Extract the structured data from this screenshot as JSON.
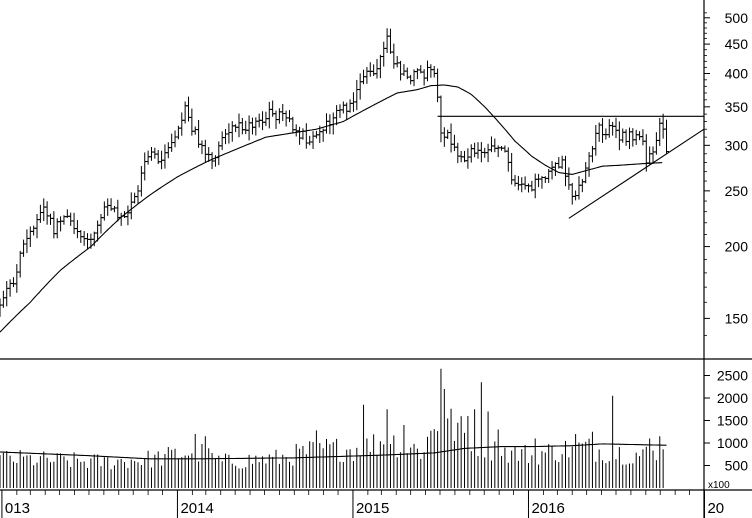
{
  "chart_data": [
    {
      "type": "ohlc",
      "scale": "log",
      "ylim": [
        128,
        520
      ],
      "y_ticks": [
        150,
        200,
        250,
        300,
        350,
        400,
        450,
        500
      ],
      "x_ticks": [
        {
          "label": "013",
          "date": "2013-01-01"
        },
        {
          "label": "2014",
          "date": "2014-01-01"
        },
        {
          "label": "2015",
          "date": "2015-01-01"
        },
        {
          "label": "2016",
          "date": "2016-01-01"
        },
        {
          "label": "20",
          "date": "2017-01-01"
        }
      ],
      "x_range": [
        "2012-12-28",
        "2016-12-31"
      ],
      "colors": {
        "bars": "#000000",
        "lines": "#000000",
        "background": "#ffffff"
      },
      "price_key": [
        [
          "2012-12-28",
          157
        ],
        [
          "2013-01-25",
          175
        ],
        [
          "2013-02-22",
          208
        ],
        [
          "2013-03-29",
          235
        ],
        [
          "2013-04-19",
          215
        ],
        [
          "2013-05-17",
          230
        ],
        [
          "2013-06-14",
          206
        ],
        [
          "2013-07-12",
          210
        ],
        [
          "2013-08-09",
          235
        ],
        [
          "2013-09-06",
          222
        ],
        [
          "2013-10-04",
          240
        ],
        [
          "2013-11-01",
          292
        ],
        [
          "2013-11-29",
          282
        ],
        [
          "2013-12-27",
          318
        ],
        [
          "2014-01-17",
          348
        ],
        [
          "2014-02-14",
          300
        ],
        [
          "2014-03-14",
          285
        ],
        [
          "2014-04-11",
          315
        ],
        [
          "2014-05-09",
          330
        ],
        [
          "2014-06-06",
          318
        ],
        [
          "2014-07-04",
          342
        ],
        [
          "2014-08-01",
          338
        ],
        [
          "2014-08-29",
          325
        ],
        [
          "2014-10-03",
          302
        ],
        [
          "2014-10-31",
          320
        ],
        [
          "2014-11-28",
          342
        ],
        [
          "2014-12-26",
          355
        ],
        [
          "2015-01-23",
          392
        ],
        [
          "2015-02-20",
          415
        ],
        [
          "2015-03-13",
          458
        ],
        [
          "2015-04-03",
          410
        ],
        [
          "2015-05-01",
          395
        ],
        [
          "2015-05-29",
          400
        ],
        [
          "2015-06-19",
          410
        ],
        [
          "2015-07-03",
          322
        ],
        [
          "2015-07-31",
          300
        ],
        [
          "2015-08-21",
          280
        ],
        [
          "2015-09-11",
          296
        ],
        [
          "2015-10-09",
          290
        ],
        [
          "2015-11-06",
          300
        ],
        [
          "2015-11-27",
          265
        ],
        [
          "2015-12-25",
          250
        ],
        [
          "2016-01-22",
          258
        ],
        [
          "2016-02-12",
          272
        ],
        [
          "2016-03-11",
          285
        ],
        [
          "2016-04-01",
          240
        ],
        [
          "2016-04-22",
          258
        ],
        [
          "2016-05-06",
          290
        ],
        [
          "2016-05-27",
          320
        ],
        [
          "2016-06-24",
          318
        ],
        [
          "2016-07-22",
          310
        ],
        [
          "2016-08-19",
          312
        ],
        [
          "2016-09-02",
          285
        ],
        [
          "2016-09-23",
          300
        ],
        [
          "2016-09-30",
          325
        ],
        [
          "2016-10-14",
          300
        ]
      ],
      "moving_average": [
        [
          "2012-12-28",
          142
        ],
        [
          "2013-03-01",
          160
        ],
        [
          "2013-05-03",
          182
        ],
        [
          "2013-07-05",
          200
        ],
        [
          "2013-09-06",
          225
        ],
        [
          "2013-11-08",
          247
        ],
        [
          "2014-01-03",
          265
        ],
        [
          "2014-03-07",
          282
        ],
        [
          "2014-05-02",
          295
        ],
        [
          "2014-07-04",
          310
        ],
        [
          "2014-09-05",
          316
        ],
        [
          "2014-10-17",
          320
        ],
        [
          "2014-12-12",
          330
        ],
        [
          "2015-02-06",
          350
        ],
        [
          "2015-04-03",
          370
        ],
        [
          "2015-05-15",
          375
        ],
        [
          "2015-06-12",
          381
        ],
        [
          "2015-07-10",
          382
        ],
        [
          "2015-08-07",
          379
        ],
        [
          "2015-09-04",
          368
        ],
        [
          "2015-10-02",
          350
        ],
        [
          "2015-11-06",
          325
        ],
        [
          "2015-12-04",
          305
        ],
        [
          "2016-01-08",
          287
        ],
        [
          "2016-02-05",
          277
        ],
        [
          "2016-03-04",
          269
        ],
        [
          "2016-04-01",
          267
        ],
        [
          "2016-04-29",
          271
        ],
        [
          "2016-06-03",
          276
        ],
        [
          "2016-07-08",
          277
        ],
        [
          "2016-08-05",
          278
        ],
        [
          "2016-09-02",
          279
        ],
        [
          "2016-10-07",
          280
        ]
      ],
      "lines": [
        {
          "kind": "resistance",
          "points": [
            [
              "2015-06-26",
              337
            ],
            [
              "2016-12-31",
              337
            ]
          ]
        },
        {
          "kind": "support",
          "points": [
            [
              "2016-03-25",
              224
            ],
            [
              "2016-12-31",
              320
            ]
          ]
        }
      ]
    },
    {
      "type": "bar",
      "unit": "x100",
      "ylim": [
        0,
        2800
      ],
      "y_ticks": [
        500,
        1000,
        1500,
        2000,
        2500
      ],
      "x_range": [
        "2012-12-28",
        "2016-12-31"
      ],
      "volume_key": [
        [
          "2012-12-28",
          800
        ],
        [
          "2013-04-05",
          750
        ],
        [
          "2013-08-02",
          700
        ],
        [
          "2013-11-22",
          800
        ],
        [
          "2014-02-07",
          1000
        ],
        [
          "2014-04-04",
          700
        ],
        [
          "2014-08-01",
          800
        ],
        [
          "2014-10-24",
          1050
        ],
        [
          "2015-01-16",
          1050
        ],
        [
          "2015-03-13",
          1300
        ],
        [
          "2015-05-22",
          1000
        ],
        [
          "2015-07-03",
          1900
        ],
        [
          "2015-08-14",
          1500
        ],
        [
          "2015-10-23",
          1000
        ],
        [
          "2016-01-08",
          900
        ],
        [
          "2016-03-04",
          1000
        ],
        [
          "2016-04-15",
          1100
        ],
        [
          "2016-06-03",
          1000
        ],
        [
          "2016-08-19",
          900
        ],
        [
          "2016-10-07",
          900
        ]
      ],
      "peaks": [
        [
          "2014-02-07",
          1200
        ],
        [
          "2014-02-28",
          1150
        ],
        [
          "2014-10-17",
          1280
        ],
        [
          "2015-01-23",
          1850
        ],
        [
          "2015-03-13",
          1750
        ],
        [
          "2015-04-17",
          1400
        ],
        [
          "2015-07-03",
          2650
        ],
        [
          "2015-07-10",
          2200
        ],
        [
          "2015-08-07",
          1450
        ],
        [
          "2015-08-28",
          1600
        ],
        [
          "2015-09-11",
          1750
        ],
        [
          "2015-09-25",
          2350
        ],
        [
          "2015-10-09",
          1700
        ],
        [
          "2015-10-30",
          1300
        ],
        [
          "2016-01-15",
          1100
        ],
        [
          "2016-04-08",
          1200
        ],
        [
          "2016-05-13",
          1250
        ],
        [
          "2016-06-24",
          2050
        ],
        [
          "2016-09-09",
          1100
        ],
        [
          "2016-09-30",
          1150
        ]
      ],
      "moving_average": [
        [
          "2012-12-28",
          800
        ],
        [
          "2013-06-28",
          720
        ],
        [
          "2013-11-01",
          650
        ],
        [
          "2014-03-01",
          650
        ],
        [
          "2014-09-01",
          670
        ],
        [
          "2015-03-01",
          730
        ],
        [
          "2015-06-19",
          780
        ],
        [
          "2015-08-21",
          880
        ],
        [
          "2015-11-06",
          920
        ],
        [
          "2016-01-08",
          920
        ],
        [
          "2016-04-01",
          940
        ],
        [
          "2016-06-03",
          980
        ],
        [
          "2016-10-14",
          950
        ]
      ]
    }
  ]
}
